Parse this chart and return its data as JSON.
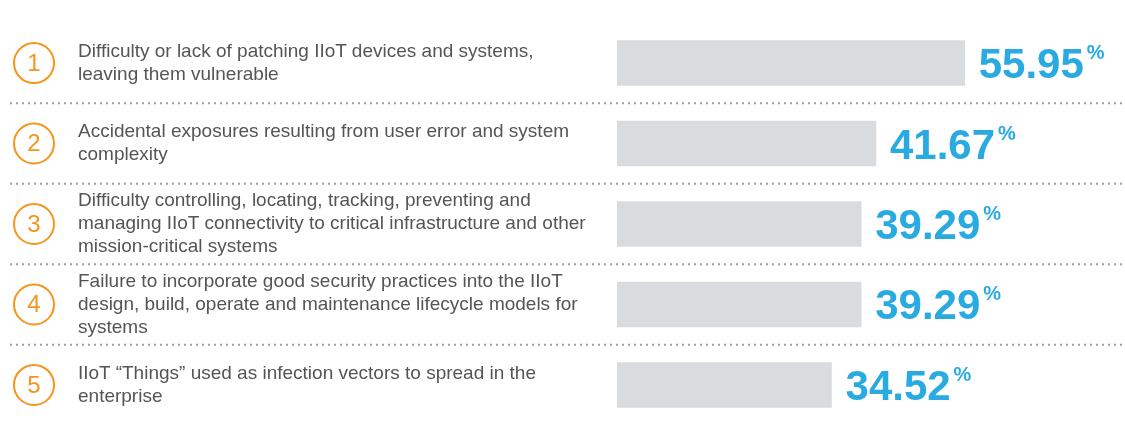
{
  "chart_data": {
    "type": "bar",
    "orientation": "horizontal",
    "categories": [
      "Difficulty or lack of patching IIoT devices and systems, leaving them vulnerable",
      "Accidental exposures resulting from user error and system complexity",
      "Difficulty controlling, locating, tracking, preventing and managing IIoT connectivity to critical infrastructure and other mission-critical systems",
      "Failure to incorporate good security practices into the IIoT design, build, operate and maintenance lifecycle models for systems",
      "IIoT “Things” used as infection vectors to spread in the enterprise"
    ],
    "values": [
      55.95,
      41.67,
      39.29,
      39.29,
      34.52
    ],
    "value_labels": [
      "55.95%",
      "41.67%",
      "39.29%",
      "39.29%",
      "34.52%"
    ],
    "color": "#d9dcde",
    "annotations": [
      "1",
      "2",
      "3",
      "4",
      "5"
    ],
    "xlim": [
      0,
      56
    ],
    "tick_labels": "y",
    "grid": "y"
  }
}
